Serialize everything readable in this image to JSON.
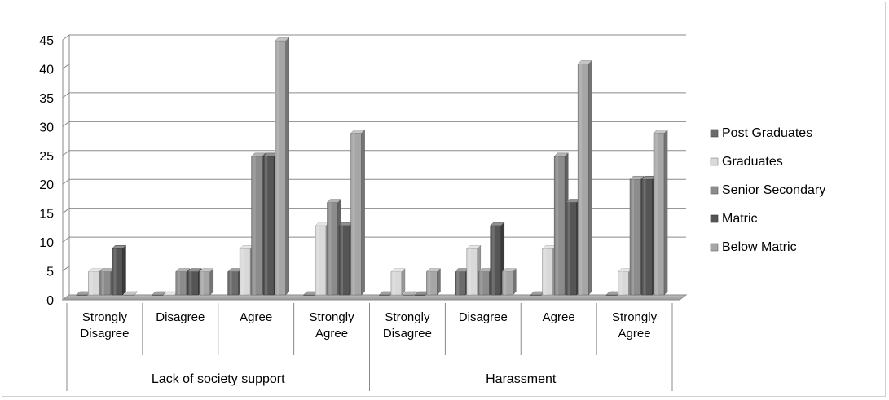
{
  "chart_data": {
    "type": "bar",
    "title": "",
    "xlabel": "",
    "ylabel": "",
    "ylim": [
      0,
      45
    ],
    "yticks": [
      0,
      5,
      10,
      15,
      20,
      25,
      30,
      35,
      40,
      45
    ],
    "grid": true,
    "legend_position": "right",
    "groups": [
      {
        "name": "Lack of society support",
        "categories": [
          [
            "Strongly",
            "Disagree"
          ],
          [
            "Disagree"
          ],
          [
            "Agree"
          ],
          [
            "Strongly",
            "Agree"
          ]
        ]
      },
      {
        "name": "Harassment",
        "categories": [
          [
            "Strongly",
            "Disagree"
          ],
          [
            "Disagree"
          ],
          [
            "Agree"
          ],
          [
            "Strongly",
            "Agree"
          ]
        ]
      }
    ],
    "series": [
      {
        "name": "Post Graduates",
        "color": "#6b6b6b",
        "values": [
          0,
          0,
          4,
          0,
          0,
          4,
          0,
          0
        ]
      },
      {
        "name": "Graduates",
        "color": "#d9d9d9",
        "values": [
          4,
          0,
          8,
          12,
          4,
          8,
          8,
          4
        ]
      },
      {
        "name": "Senior Secondary",
        "color": "#8c8c8c",
        "values": [
          4,
          4,
          24,
          16,
          0,
          4,
          24,
          20
        ]
      },
      {
        "name": "Matric",
        "color": "#555555",
        "values": [
          8,
          4,
          24,
          12,
          0,
          12,
          16,
          20
        ]
      },
      {
        "name": "Below Matric",
        "color": "#a6a6a6",
        "values": [
          0,
          4,
          44,
          28,
          4,
          4,
          40,
          28
        ]
      }
    ]
  }
}
